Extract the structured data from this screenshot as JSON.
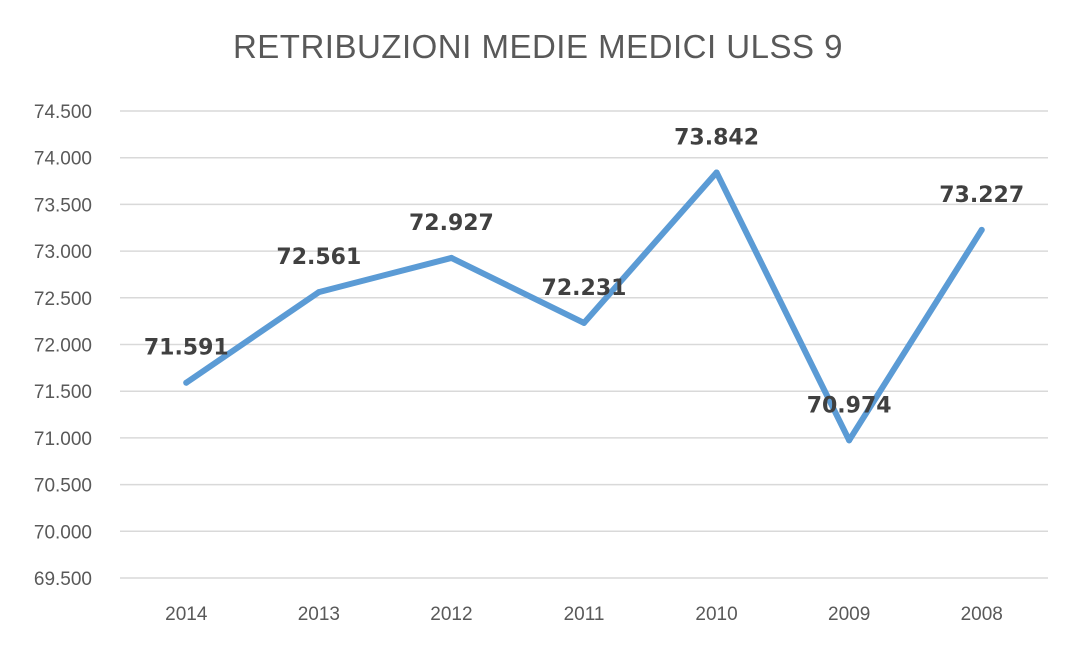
{
  "chart_data": {
    "type": "line",
    "title": "RETRIBUZIONI MEDIE MEDICI ULSS 9",
    "categories": [
      "2014",
      "2013",
      "2012",
      "2011",
      "2010",
      "2009",
      "2008"
    ],
    "series": [
      {
        "values": [
          71591,
          72561,
          72927,
          72231,
          73842,
          70974,
          73227
        ],
        "data_labels": [
          "71.591",
          "72.561",
          "72.927",
          "72.231",
          "73.842",
          "70.974",
          "73.227"
        ],
        "color": "#5b9bd5"
      }
    ],
    "ylim": [
      69500,
      74500
    ],
    "yticks": [
      69500,
      70000,
      70500,
      71000,
      71500,
      72000,
      72500,
      73000,
      73500,
      74000,
      74500
    ],
    "ytick_labels": [
      "69.500",
      "70.000",
      "70.500",
      "71.000",
      "71.500",
      "72.000",
      "72.500",
      "73.000",
      "73.500",
      "74.000",
      "74.500"
    ],
    "xlabel": "",
    "ylabel": "",
    "grid": true,
    "legend": "none"
  }
}
